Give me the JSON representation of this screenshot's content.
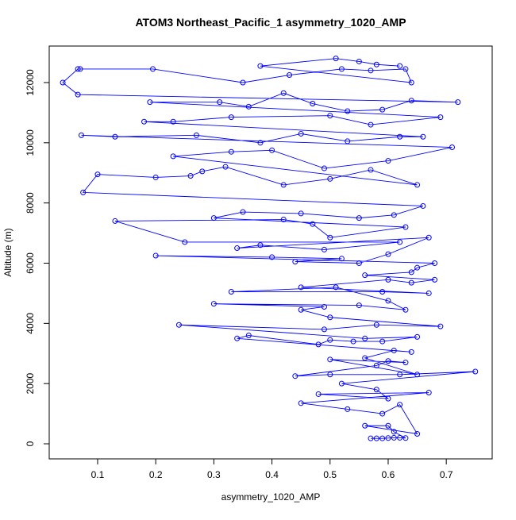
{
  "chart_data": {
    "type": "line",
    "title": "ATOM3 Northeast_Pacific_1 asymmetry_1020_AMP",
    "x_label": "asymmetry_1020_AMP",
    "y_label": "Altitude (m)",
    "xlim": [
      0.0167,
      0.779
    ],
    "ylim": [
      -501,
      13213
    ],
    "xticks": [
      0.1,
      0.2,
      0.3,
      0.4,
      0.5,
      0.6,
      0.7
    ],
    "yticks": [
      0,
      2000,
      4000,
      6000,
      8000,
      10000,
      12000
    ],
    "series": [
      {
        "color": "#0000ff",
        "x": [
          0.57,
          0.58,
          0.59,
          0.6,
          0.61,
          0.62,
          0.63,
          0.61,
          0.6,
          0.56,
          0.65,
          0.62,
          0.59,
          0.53,
          0.45,
          0.67,
          0.48,
          0.6,
          0.58,
          0.52,
          0.75,
          0.62,
          0.5,
          0.44,
          0.58,
          0.6,
          0.63,
          0.5,
          0.65,
          0.56,
          0.61,
          0.64,
          0.34,
          0.36,
          0.48,
          0.5,
          0.54,
          0.59,
          0.65,
          0.56,
          0.24,
          0.49,
          0.58,
          0.69,
          0.5,
          0.45,
          0.49,
          0.3,
          0.55,
          0.63,
          0.6,
          0.51,
          0.33,
          0.59,
          0.67,
          0.45,
          0.6,
          0.64,
          0.68,
          0.56,
          0.64,
          0.65,
          0.68,
          0.2,
          0.4,
          0.52,
          0.44,
          0.55,
          0.6,
          0.67,
          0.34,
          0.38,
          0.49,
          0.62,
          0.25,
          0.13,
          0.42,
          0.47,
          0.5,
          0.63,
          0.3,
          0.35,
          0.45,
          0.55,
          0.61,
          0.66,
          0.075,
          0.1,
          0.2,
          0.26,
          0.28,
          0.32,
          0.42,
          0.5,
          0.57,
          0.65,
          0.23,
          0.33,
          0.4,
          0.49,
          0.6,
          0.71,
          0.072,
          0.13,
          0.27,
          0.38,
          0.45,
          0.53,
          0.62,
          0.66,
          0.18,
          0.23,
          0.33,
          0.5,
          0.57,
          0.69,
          0.19,
          0.31,
          0.36,
          0.42,
          0.47,
          0.53,
          0.59,
          0.64,
          0.72,
          0.066,
          0.04,
          0.066,
          0.07,
          0.195,
          0.35,
          0.43,
          0.52,
          0.57,
          0.63,
          0.64,
          0.38,
          0.51,
          0.55,
          0.58,
          0.62
        ],
        "values": [
          180,
          180,
          180,
          190,
          200,
          200,
          190,
          400,
          600,
          600,
          330,
          1300,
          1000,
          1150,
          1350,
          1700,
          1650,
          1500,
          1800,
          2000,
          2400,
          2300,
          2300,
          2250,
          2600,
          2750,
          2700,
          2800,
          2300,
          2850,
          3100,
          3050,
          3500,
          3600,
          3300,
          3450,
          3400,
          3400,
          3550,
          3500,
          3950,
          3800,
          3950,
          3900,
          4200,
          4450,
          4550,
          4650,
          4600,
          4450,
          4750,
          5200,
          5050,
          5050,
          5000,
          5200,
          5450,
          5350,
          5450,
          5600,
          5700,
          5850,
          6000,
          6250,
          6200,
          6150,
          6050,
          6000,
          6300,
          6850,
          6500,
          6600,
          6450,
          6700,
          6700,
          7400,
          7450,
          7300,
          6850,
          7200,
          7500,
          7700,
          7650,
          7500,
          7600,
          7900,
          8350,
          8950,
          8850,
          8900,
          9050,
          9200,
          8600,
          8800,
          9100,
          8600,
          9550,
          9700,
          9750,
          9150,
          9400,
          9850,
          10250,
          10200,
          10250,
          10000,
          10300,
          10050,
          10200,
          10200,
          10700,
          10700,
          10850,
          10900,
          10600,
          10850,
          11350,
          11350,
          11200,
          11650,
          11300,
          11050,
          11100,
          11400,
          11350,
          11600,
          12000,
          12450,
          12450,
          12450,
          12000,
          12250,
          12450,
          12400,
          12450,
          12000,
          12550,
          12800,
          12700,
          12600,
          12550
        ]
      }
    ]
  }
}
